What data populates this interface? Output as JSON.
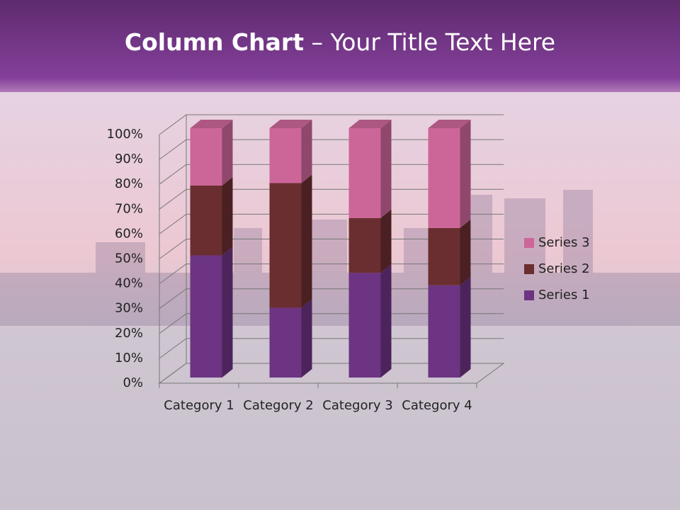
{
  "title_bold": "Column Chart",
  "title": "– Your Title Text Here",
  "chart_data": {
    "type": "bar",
    "stacked": true,
    "categories": [
      "Category 1",
      "Category 2",
      "Category 3",
      "Category 4"
    ],
    "series": [
      {
        "name": "Series 1",
        "color": "#6c3482",
        "values": [
          49,
          28,
          42,
          37
        ]
      },
      {
        "name": "Series 2",
        "color": "#6a2e30",
        "values": [
          28,
          50,
          22,
          23
        ]
      },
      {
        "name": "Series 3",
        "color": "#cc6699",
        "values": [
          23,
          22,
          36,
          40
        ]
      }
    ],
    "ylim": [
      0,
      100
    ],
    "yticks": [
      {
        "value": 0,
        "label": "0%"
      },
      {
        "value": 10,
        "label": "10%"
      },
      {
        "value": 20,
        "label": "20%"
      },
      {
        "value": 30,
        "label": "30%"
      },
      {
        "value": 40,
        "label": "40%"
      },
      {
        "value": 50,
        "label": "50%"
      },
      {
        "value": 60,
        "label": "60%"
      },
      {
        "value": 70,
        "label": "70%"
      },
      {
        "value": 80,
        "label": "80%"
      },
      {
        "value": 90,
        "label": "90%"
      },
      {
        "value": 100,
        "label": "100%"
      }
    ],
    "grid": true,
    "legend": "right"
  }
}
